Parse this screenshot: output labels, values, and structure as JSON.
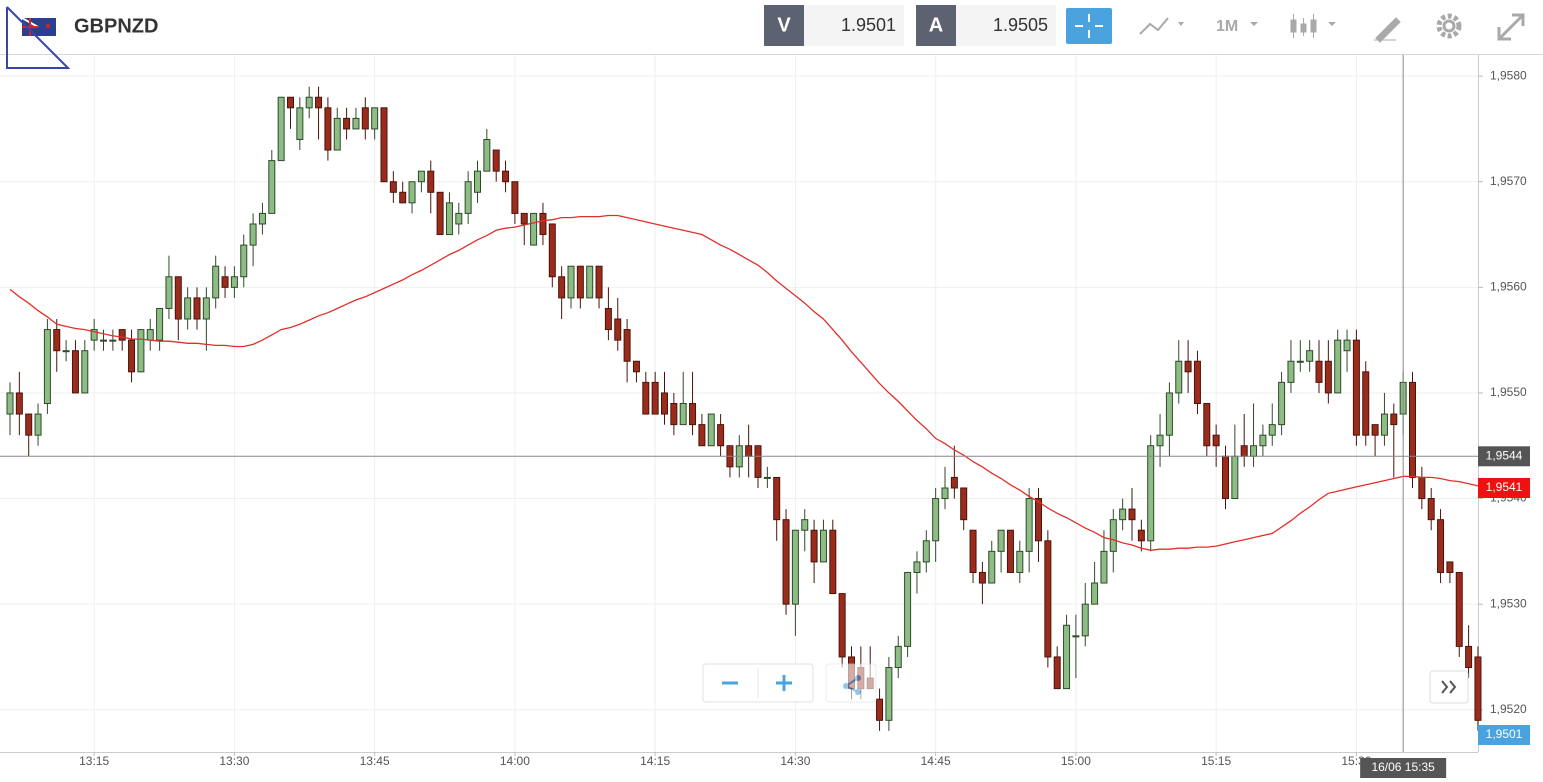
{
  "header": {
    "symbol": "GBPNZD",
    "bid_label": "V",
    "bid": 1.9501,
    "ask_label": "A",
    "ask": 1.9505,
    "timeframe": "1M"
  },
  "chart_data": {
    "type": "candlestick",
    "categories": [
      null,
      null,
      null,
      null,
      null,
      null,
      null,
      null,
      null,
      "13:15",
      null,
      null,
      null,
      null,
      null,
      null,
      null,
      null,
      null,
      null,
      null,
      null,
      null,
      null,
      "13:30",
      null,
      null,
      null,
      null,
      null,
      null,
      null,
      null,
      null,
      null,
      null,
      null,
      null,
      null,
      "13:45",
      null,
      null,
      null,
      null,
      null,
      null,
      null,
      null,
      null,
      null,
      null,
      null,
      null,
      null,
      "14:00",
      null,
      null,
      null,
      null,
      null,
      null,
      null,
      null,
      null,
      null,
      null,
      null,
      null,
      null,
      "14:15",
      null,
      null,
      null,
      null,
      null,
      null,
      null,
      null,
      null,
      null,
      null,
      null,
      null,
      null,
      "14:30",
      null,
      null,
      null,
      null,
      null,
      null,
      null,
      null,
      null,
      null,
      null,
      null,
      null,
      null,
      "14:45",
      null,
      null,
      null,
      null,
      null,
      null,
      null,
      null,
      null,
      null,
      null,
      null,
      null,
      null,
      "15:00",
      null,
      null,
      null,
      null,
      null,
      null,
      null,
      null,
      null,
      null,
      null,
      null,
      null,
      null,
      "15:15",
      null,
      null,
      null,
      null,
      null,
      null,
      null,
      null,
      null,
      null,
      null,
      null,
      null,
      null,
      "15:30",
      null,
      null,
      null,
      null,
      null,
      null,
      null,
      null,
      null,
      null,
      null,
      null,
      null
    ],
    "open": [
      1.9548,
      1.955,
      1.9548,
      1.9546,
      1.9549,
      1.9556,
      1.9554,
      1.9554,
      1.955,
      1.9555,
      1.9555,
      1.9555,
      1.9556,
      1.9555,
      1.9552,
      1.9555,
      1.9555,
      1.9558,
      1.9561,
      1.9557,
      1.9559,
      1.9557,
      1.9559,
      1.9561,
      1.956,
      1.9561,
      1.9564,
      1.9566,
      1.9567,
      1.9572,
      1.9578,
      1.9574,
      1.9577,
      1.9578,
      1.9577,
      1.9573,
      1.9576,
      1.9575,
      1.9577,
      1.9575,
      1.9577,
      1.957,
      1.9569,
      1.9568,
      1.957,
      1.9571,
      1.9569,
      1.9565,
      1.9566,
      1.9567,
      1.9569,
      1.9571,
      1.9573,
      1.9571,
      1.957,
      1.9567,
      1.9564,
      1.9567,
      1.9566,
      1.9561,
      1.9559,
      1.9562,
      1.9559,
      1.9562,
      1.9558,
      1.9557,
      1.9556,
      1.9553,
      1.9551,
      1.9551,
      1.955,
      1.9549,
      1.9547,
      1.9549,
      1.9547,
      1.9545,
      1.9547,
      1.9545,
      1.9543,
      1.9545,
      1.9545,
      1.9542,
      1.9542,
      1.9538,
      1.953,
      1.9537,
      1.9537,
      1.9534,
      1.9537,
      1.9531,
      1.9525,
      1.9524,
      1.9523,
      1.9521,
      1.9519,
      1.9524,
      1.9526,
      1.9533,
      1.9534,
      1.9536,
      1.954,
      1.9542,
      1.9541,
      1.9537,
      1.9533,
      1.9532,
      1.9535,
      1.9537,
      1.9533,
      1.9535,
      1.954,
      1.9536,
      1.9525,
      1.9522,
      1.9527,
      1.9527,
      1.953,
      1.9532,
      1.9535,
      1.9538,
      1.9539,
      1.9537,
      1.9536,
      1.9545,
      1.9546,
      1.955,
      1.9553,
      1.9553,
      1.9549,
      1.9546,
      1.9544,
      1.954,
      1.9545,
      1.9544,
      1.9545,
      1.9546,
      1.9547,
      1.9551,
      1.9553,
      1.9553,
      1.9553,
      1.9553,
      1.955,
      1.9554,
      1.9555,
      1.9552,
      1.9547,
      1.9546,
      1.9548,
      1.9548,
      1.9551,
      1.9542,
      1.954,
      1.9538,
      1.9534,
      1.9533,
      1.9526,
      1.9525
    ],
    "high": [
      1.9551,
      1.9552,
      1.9548,
      1.9549,
      1.9557,
      1.9557,
      1.9555,
      1.9555,
      1.9555,
      1.9557,
      1.9556,
      1.9556,
      1.9556,
      1.9556,
      1.9556,
      1.9557,
      1.9558,
      1.9563,
      1.9561,
      1.956,
      1.956,
      1.956,
      1.9563,
      1.9562,
      1.9562,
      1.9565,
      1.9567,
      1.9568,
      1.9573,
      1.9578,
      1.9578,
      1.9578,
      1.9579,
      1.9579,
      1.9578,
      1.9577,
      1.9577,
      1.9577,
      1.9578,
      1.9577,
      1.9577,
      1.9571,
      1.957,
      1.957,
      1.9571,
      1.9572,
      1.9569,
      1.9569,
      1.9568,
      1.9571,
      1.9572,
      1.9575,
      1.9573,
      1.9572,
      1.957,
      1.9567,
      1.9567,
      1.9568,
      1.9566,
      1.9562,
      1.9562,
      1.9562,
      1.9562,
      1.9562,
      1.956,
      1.9559,
      1.9557,
      1.9553,
      1.9552,
      1.9552,
      1.9552,
      1.955,
      1.9552,
      1.9552,
      1.9548,
      1.9548,
      1.9548,
      1.9545,
      1.9546,
      1.9547,
      1.9545,
      1.9543,
      1.9542,
      1.9539,
      1.9537,
      1.9539,
      1.9538,
      1.9538,
      1.9538,
      1.9531,
      1.9526,
      1.9526,
      1.9526,
      1.9522,
      1.9525,
      1.9527,
      1.9533,
      1.9535,
      1.9537,
      1.9541,
      1.9543,
      1.9545,
      1.9541,
      1.9537,
      1.9534,
      1.9536,
      1.9537,
      1.9537,
      1.9536,
      1.9541,
      1.9541,
      1.9537,
      1.9526,
      1.9529,
      1.9529,
      1.9532,
      1.9534,
      1.9537,
      1.9539,
      1.954,
      1.9541,
      1.9538,
      1.9546,
      1.9548,
      1.9551,
      1.9555,
      1.9555,
      1.9554,
      1.9549,
      1.9547,
      1.9545,
      1.9547,
      1.9548,
      1.9549,
      1.9547,
      1.9549,
      1.9552,
      1.9555,
      1.9555,
      1.9555,
      1.9555,
      1.9555,
      1.9556,
      1.9556,
      1.9556,
      1.9553,
      1.9547,
      1.955,
      1.9549,
      1.9552,
      1.9552,
      1.9543,
      1.9541,
      1.9539,
      1.9534,
      1.9533,
      1.9528,
      1.9526
    ],
    "low": [
      1.9546,
      1.9546,
      1.9544,
      1.9545,
      1.9548,
      1.9552,
      1.9553,
      1.955,
      1.955,
      1.9554,
      1.9554,
      1.9554,
      1.9554,
      1.9551,
      1.9552,
      1.9554,
      1.9554,
      1.9557,
      1.9555,
      1.9556,
      1.9556,
      1.9554,
      1.9558,
      1.9559,
      1.9559,
      1.956,
      1.9562,
      1.9565,
      1.9567,
      1.9572,
      1.9575,
      1.9573,
      1.9576,
      1.9574,
      1.9572,
      1.9573,
      1.9574,
      1.9575,
      1.9574,
      1.9574,
      1.957,
      1.9568,
      1.9568,
      1.9567,
      1.9569,
      1.9567,
      1.9565,
      1.9565,
      1.9565,
      1.9566,
      1.9568,
      1.9571,
      1.957,
      1.9569,
      1.9566,
      1.9564,
      1.9564,
      1.9564,
      1.956,
      1.9557,
      1.9558,
      1.9558,
      1.9559,
      1.9558,
      1.9555,
      1.9554,
      1.9551,
      1.9551,
      1.9548,
      1.9548,
      1.9547,
      1.9546,
      1.9547,
      1.9546,
      1.9545,
      1.9545,
      1.9544,
      1.9542,
      1.9542,
      1.9542,
      1.9541,
      1.9541,
      1.9536,
      1.9529,
      1.9527,
      1.9535,
      1.9532,
      1.9534,
      1.9531,
      1.9524,
      1.9521,
      1.9521,
      1.9522,
      1.9518,
      1.9518,
      1.9523,
      1.9525,
      1.9531,
      1.9533,
      1.9534,
      1.9539,
      1.954,
      1.9537,
      1.9532,
      1.953,
      1.9532,
      1.9533,
      1.9533,
      1.9532,
      1.9533,
      1.9534,
      1.9524,
      1.9522,
      1.9522,
      1.9523,
      1.9526,
      1.953,
      1.9532,
      1.9533,
      1.9537,
      1.9536,
      1.9535,
      1.9535,
      1.9543,
      1.9544,
      1.9549,
      1.955,
      1.9548,
      1.9544,
      1.9543,
      1.9539,
      1.954,
      1.9543,
      1.9543,
      1.9544,
      1.9545,
      1.9546,
      1.955,
      1.9552,
      1.9552,
      1.955,
      1.9549,
      1.955,
      1.9552,
      1.9545,
      1.9545,
      1.9544,
      1.9545,
      1.9542,
      1.9546,
      1.9541,
      1.9539,
      1.9537,
      1.9532,
      1.9532,
      1.9525,
      1.9523,
      1.9518
    ],
    "close": [
      1.955,
      1.9548,
      1.9546,
      1.9548,
      1.9556,
      1.9554,
      1.9554,
      1.955,
      1.9554,
      1.9556,
      1.9555,
      1.9555,
      1.9555,
      1.9552,
      1.9556,
      1.9556,
      1.9558,
      1.9561,
      1.9557,
      1.9559,
      1.9557,
      1.9559,
      1.9562,
      1.956,
      1.9561,
      1.9564,
      1.9566,
      1.9567,
      1.9572,
      1.9578,
      1.9577,
      1.9577,
      1.9578,
      1.9577,
      1.9573,
      1.9576,
      1.9575,
      1.9576,
      1.9575,
      1.9577,
      1.957,
      1.9569,
      1.9568,
      1.957,
      1.9571,
      1.9569,
      1.9565,
      1.9568,
      1.9567,
      1.957,
      1.9571,
      1.9574,
      1.9571,
      1.957,
      1.9567,
      1.9566,
      1.9567,
      1.9565,
      1.9561,
      1.9559,
      1.9562,
      1.9559,
      1.9562,
      1.9559,
      1.9556,
      1.9555,
      1.9553,
      1.9552,
      1.9548,
      1.9548,
      1.9548,
      1.9547,
      1.9549,
      1.9547,
      1.9545,
      1.9548,
      1.9545,
      1.9543,
      1.9545,
      1.9544,
      1.9542,
      1.9542,
      1.9538,
      1.953,
      1.9537,
      1.9538,
      1.9534,
      1.9537,
      1.9531,
      1.9525,
      1.9522,
      1.9522,
      1.9522,
      1.9519,
      1.9524,
      1.9526,
      1.9533,
      1.9534,
      1.9536,
      1.954,
      1.9541,
      1.9541,
      1.9538,
      1.9533,
      1.9532,
      1.9535,
      1.9537,
      1.9533,
      1.9535,
      1.954,
      1.9536,
      1.9525,
      1.9522,
      1.9528,
      1.9527,
      1.953,
      1.9532,
      1.9535,
      1.9538,
      1.9539,
      1.9538,
      1.9536,
      1.9545,
      1.9546,
      1.955,
      1.9553,
      1.9552,
      1.9549,
      1.9545,
      1.9545,
      1.954,
      1.9544,
      1.9544,
      1.9545,
      1.9546,
      1.9547,
      1.9551,
      1.9553,
      1.9553,
      1.9554,
      1.9551,
      1.955,
      1.9555,
      1.9555,
      1.9546,
      1.9546,
      1.9546,
      1.9548,
      1.9547,
      1.9551,
      1.9542,
      1.954,
      1.9538,
      1.9533,
      1.9533,
      1.9526,
      1.9524,
      1.9519
    ],
    "up_color": "#8dbd84",
    "down_color": "#9b2c1c",
    "ma": {
      "color": "#e0302a",
      "values": [
        1.95598,
        1.95591,
        1.95585,
        1.95578,
        1.95572,
        1.95565,
        1.95563,
        1.95561,
        1.9556,
        1.95558,
        1.95556,
        1.95554,
        1.95553,
        1.95551,
        1.95551,
        1.9555,
        1.95549,
        1.95549,
        1.95548,
        1.95547,
        1.95547,
        1.95546,
        1.95545,
        1.95545,
        1.95544,
        1.95544,
        1.95546,
        1.9555,
        1.95555,
        1.9556,
        1.95562,
        1.95565,
        1.95569,
        1.95573,
        1.95576,
        1.9558,
        1.95584,
        1.95588,
        1.95591,
        1.95595,
        1.95599,
        1.95603,
        1.95607,
        1.95612,
        1.95616,
        1.95621,
        1.95626,
        1.95631,
        1.95635,
        1.9564,
        1.95645,
        1.95649,
        1.95654,
        1.95656,
        1.95657,
        1.95659,
        1.95661,
        1.95663,
        1.95664,
        1.95666,
        1.95666,
        1.95667,
        1.95667,
        1.95667,
        1.95668,
        1.95668,
        1.95666,
        1.95664,
        1.95662,
        1.9566,
        1.95658,
        1.95656,
        1.95654,
        1.95652,
        1.9565,
        1.95645,
        1.9564,
        1.95636,
        1.95631,
        1.95626,
        1.95621,
        1.95614,
        1.95606,
        1.95599,
        1.95592,
        1.95585,
        1.95577,
        1.9557,
        1.9556,
        1.9555,
        1.95539,
        1.95529,
        1.95519,
        1.95509,
        1.955,
        1.95492,
        1.95483,
        1.95474,
        1.95466,
        1.95457,
        1.95452,
        1.95446,
        1.95441,
        1.95435,
        1.9543,
        1.95424,
        1.95419,
        1.95413,
        1.95408,
        1.95402,
        1.95397,
        1.95391,
        1.95386,
        1.95382,
        1.95377,
        1.95372,
        1.95368,
        1.95363,
        1.95361,
        1.95358,
        1.95356,
        1.95353,
        1.95351,
        1.95352,
        1.95352,
        1.95353,
        1.95353,
        1.95354,
        1.95354,
        1.95355,
        1.95357,
        1.95359,
        1.95361,
        1.95363,
        1.95365,
        1.95367,
        1.95373,
        1.95379,
        1.95386,
        1.95392,
        1.95399,
        1.95405,
        1.95407,
        1.95409,
        1.95411,
        1.95413,
        1.95415,
        1.95417,
        1.95419,
        1.95421,
        1.95421,
        1.9542,
        1.9542,
        1.95419,
        1.95417,
        1.95416,
        1.95414,
        1.95412
      ]
    },
    "ylim": [
      1.9516,
      1.9582
    ],
    "yticks": [
      {
        "value": 1.952,
        "label": "1,9520"
      },
      {
        "value": 1.953,
        "label": "1,9530"
      },
      {
        "value": 1.954,
        "label": "1,9540"
      },
      {
        "value": 1.955,
        "label": "1,9550"
      },
      {
        "value": 1.956,
        "label": "1,9560"
      },
      {
        "value": 1.957,
        "label": "1,9570"
      },
      {
        "value": 1.958,
        "label": "1,9580"
      }
    ],
    "grid": true,
    "crosshair": {
      "time_label": "16/06 15:35",
      "price": {
        "value": 1.9544,
        "label": "1,9544"
      }
    },
    "ma_price": {
      "value": 1.9541,
      "label": "1,9541"
    },
    "last_price": {
      "value": 1.9501,
      "label": "1,9501"
    }
  }
}
